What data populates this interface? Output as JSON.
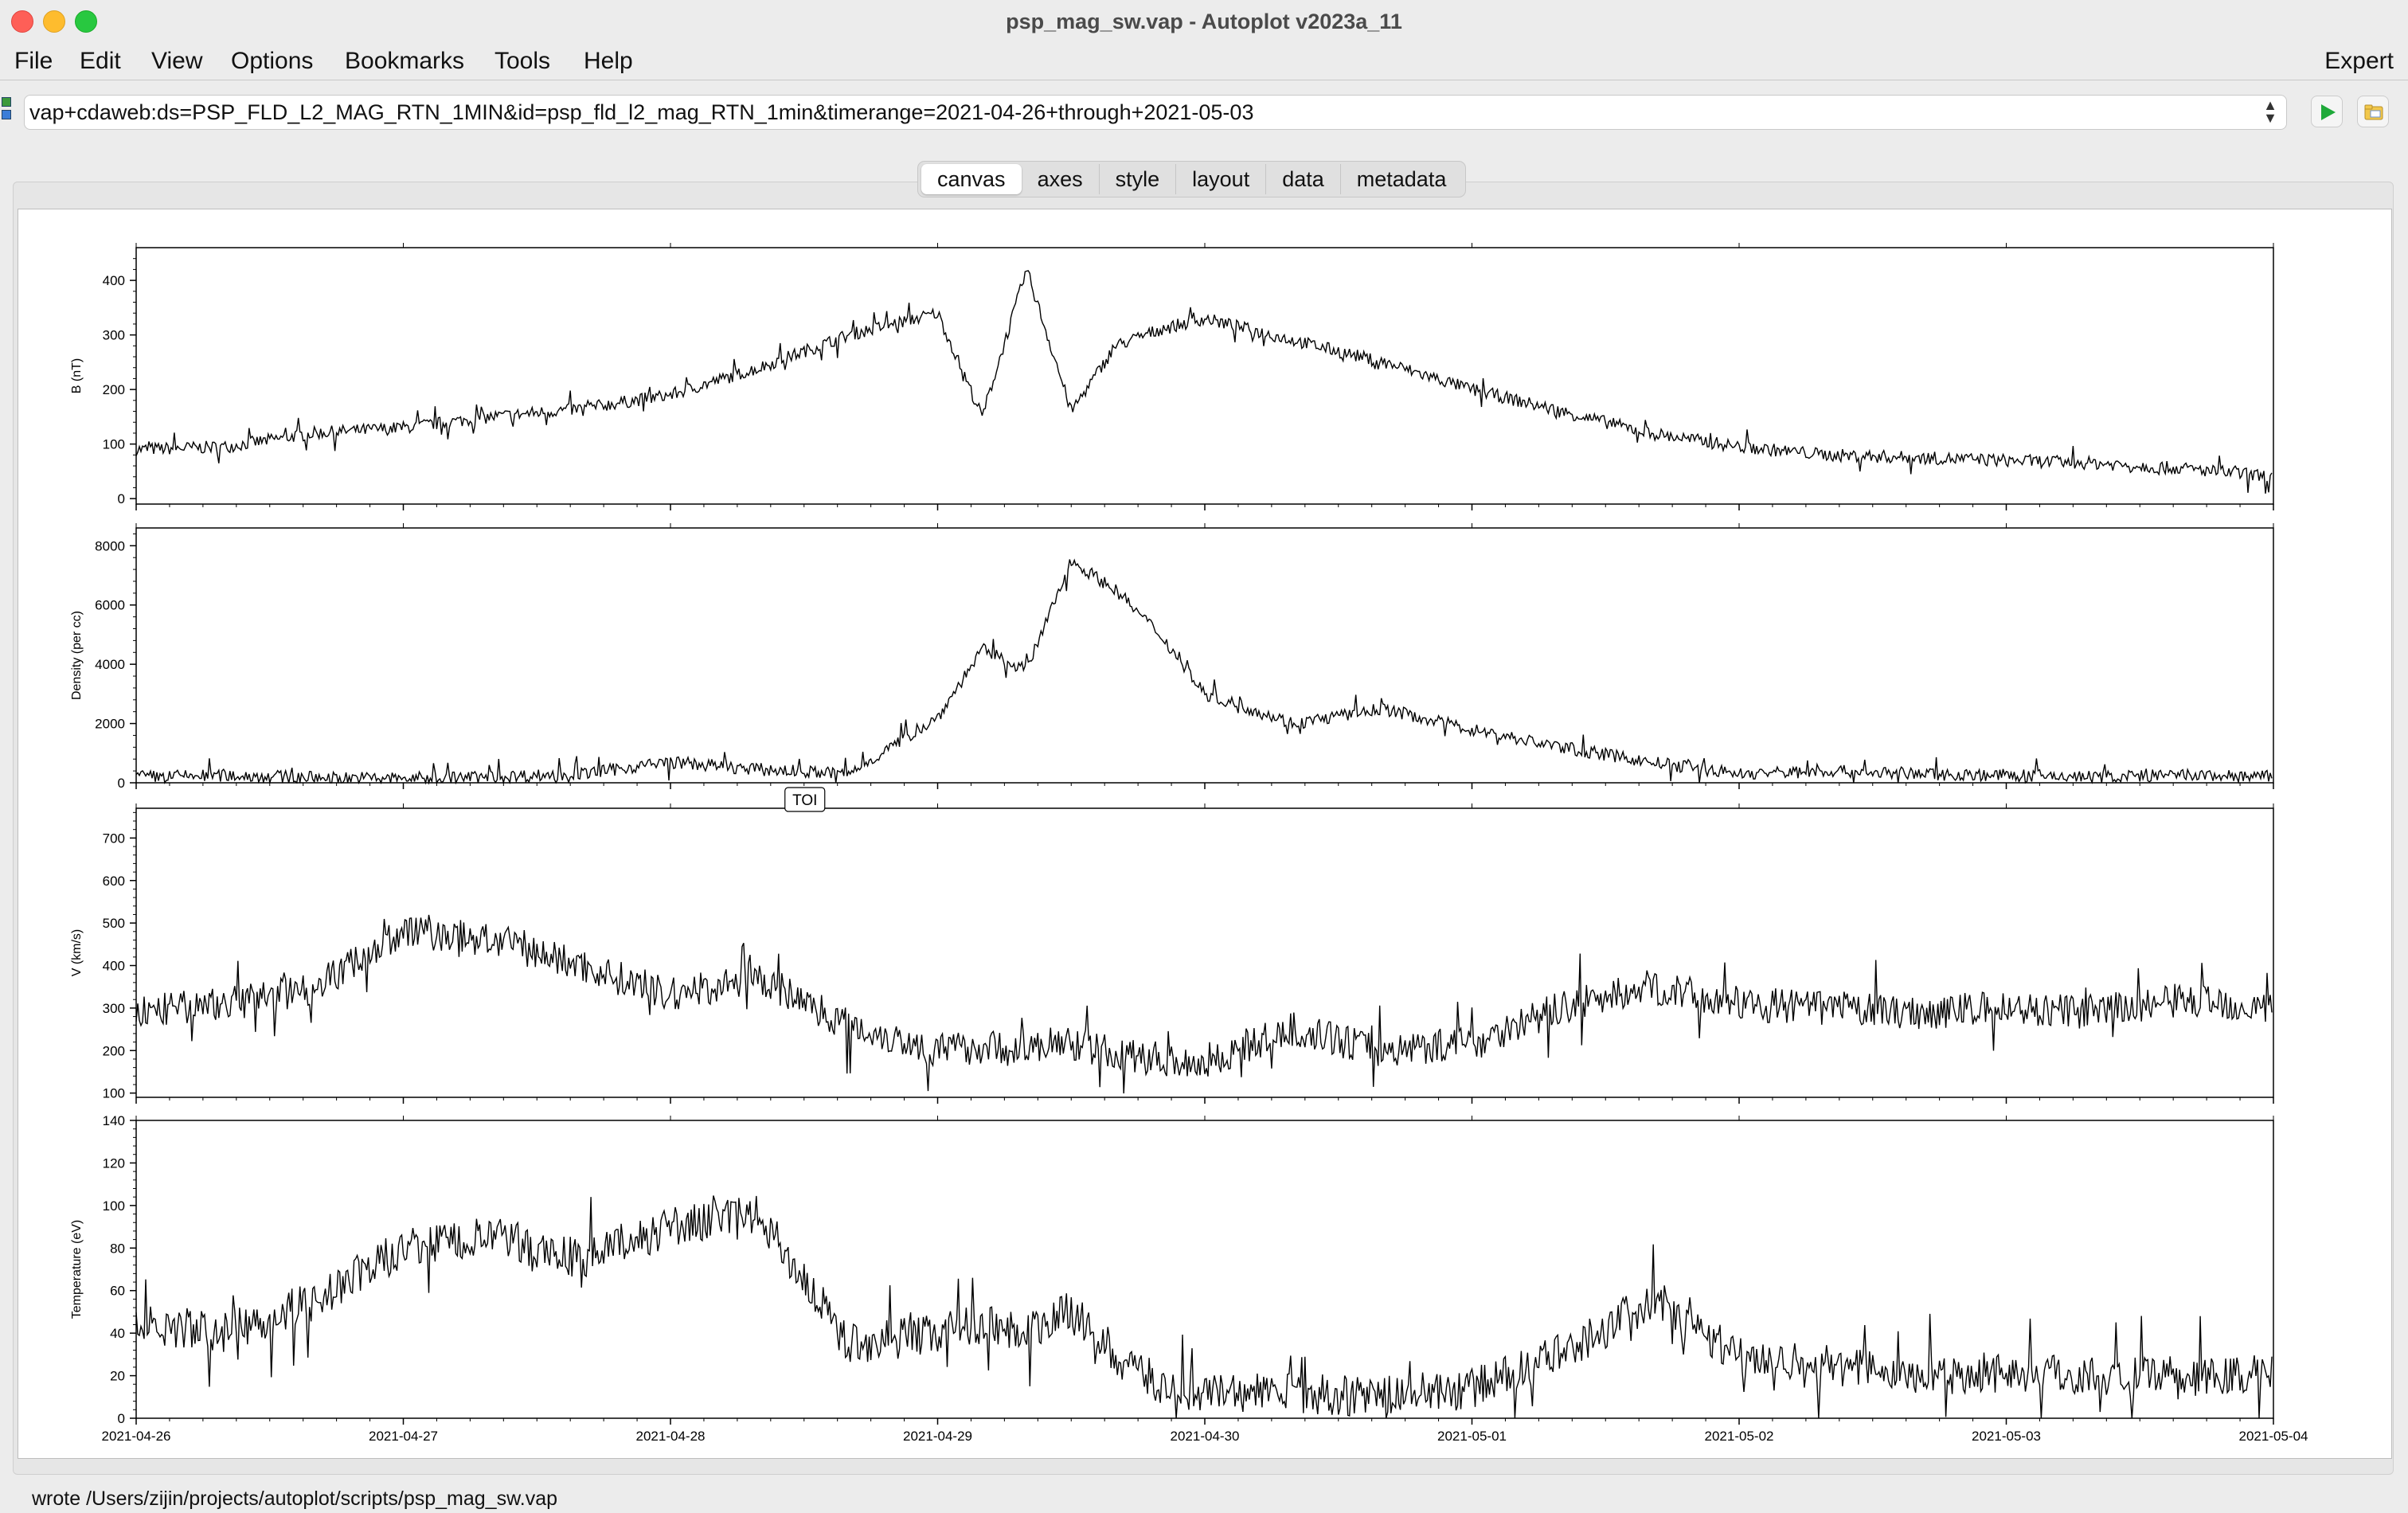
{
  "window": {
    "title": "psp_mag_sw.vap - Autoplot v2023a_11"
  },
  "menu": {
    "items": [
      "File",
      "Edit",
      "View",
      "Options",
      "Bookmarks",
      "Tools",
      "Help"
    ],
    "expert": "Expert"
  },
  "uri": {
    "value": "vap+cdaweb:ds=PSP_FLD_L2_MAG_RTN_1MIN&id=psp_fld_l2_mag_RTN_1min&timerange=2021-04-26+through+2021-05-03"
  },
  "tabs": [
    "canvas",
    "axes",
    "style",
    "layout",
    "data",
    "metadata"
  ],
  "status": "wrote /Users/zijin/projects/autoplot/scripts/psp_mag_sw.vap",
  "icons": {
    "go": "play-icon",
    "folder": "folder-icon",
    "uri-type": "data-source-icon",
    "spinner": "chevron-updown-icon"
  },
  "chart_data": [
    {
      "type": "line",
      "ylabel": "B (nT)",
      "ylim": [
        -10,
        460
      ],
      "yticks": [
        0,
        100,
        200,
        300,
        400
      ],
      "x": [
        "2021-04-26 00:00",
        "2021-04-26 08:00",
        "2021-04-26 16:00",
        "2021-04-27 00:00",
        "2021-04-27 08:00",
        "2021-04-27 16:00",
        "2021-04-28 00:00",
        "2021-04-28 08:00",
        "2021-04-28 16:00",
        "2021-04-29 00:00",
        "2021-04-29 04:00",
        "2021-04-29 08:00",
        "2021-04-29 12:00",
        "2021-04-29 16:00",
        "2021-04-29 20:00",
        "2021-04-30 00:00",
        "2021-04-30 08:00",
        "2021-04-30 16:00",
        "2021-05-01 00:00",
        "2021-05-01 08:00",
        "2021-05-01 16:00",
        "2021-05-02 00:00",
        "2021-05-02 08:00",
        "2021-05-02 16:00",
        "2021-05-03 00:00",
        "2021-05-03 08:00",
        "2021-05-03 16:00",
        "2021-05-04 00:00"
      ],
      "y": [
        90,
        95,
        120,
        130,
        150,
        165,
        190,
        240,
        300,
        340,
        150,
        420,
        160,
        280,
        310,
        330,
        290,
        250,
        200,
        160,
        120,
        95,
        80,
        75,
        70,
        65,
        55,
        40
      ]
    },
    {
      "type": "line",
      "ylabel": "Density (per cc)",
      "ylim": [
        0,
        8600
      ],
      "yticks": [
        0,
        2000,
        4000,
        6000,
        8000
      ],
      "x": [
        "2021-04-26 00:00",
        "2021-04-26 08:00",
        "2021-04-26 16:00",
        "2021-04-27 00:00",
        "2021-04-27 08:00",
        "2021-04-27 16:00",
        "2021-04-28 00:00",
        "2021-04-28 08:00",
        "2021-04-28 16:00",
        "2021-04-29 00:00",
        "2021-04-29 04:00",
        "2021-04-29 08:00",
        "2021-04-29 12:00",
        "2021-04-29 16:00",
        "2021-04-29 20:00",
        "2021-04-30 00:00",
        "2021-04-30 08:00",
        "2021-04-30 16:00",
        "2021-05-01 00:00",
        "2021-05-01 08:00",
        "2021-05-01 16:00",
        "2021-05-02 00:00",
        "2021-05-02 08:00",
        "2021-05-02 16:00",
        "2021-05-03 00:00",
        "2021-05-03 08:00",
        "2021-05-03 16:00",
        "2021-05-04 00:00"
      ],
      "y": [
        200,
        250,
        180,
        150,
        200,
        300,
        700,
        450,
        300,
        2200,
        4500,
        3800,
        7500,
        6500,
        5000,
        3000,
        2000,
        2500,
        1800,
        1200,
        700,
        300,
        400,
        300,
        250,
        200,
        250,
        200
      ]
    },
    {
      "type": "line",
      "ylabel": "V (km/s)",
      "ylim": [
        90,
        770
      ],
      "yticks": [
        100,
        200,
        300,
        400,
        500,
        600,
        700
      ],
      "annotation": "TOI",
      "x": [
        "2021-04-26 00:00",
        "2021-04-26 08:00",
        "2021-04-26 16:00",
        "2021-04-27 00:00",
        "2021-04-27 08:00",
        "2021-04-27 16:00",
        "2021-04-28 00:00",
        "2021-04-28 08:00",
        "2021-04-28 16:00",
        "2021-04-29 00:00",
        "2021-04-29 04:00",
        "2021-04-29 08:00",
        "2021-04-29 12:00",
        "2021-04-29 16:00",
        "2021-04-29 20:00",
        "2021-04-30 00:00",
        "2021-04-30 08:00",
        "2021-04-30 16:00",
        "2021-05-01 00:00",
        "2021-05-01 08:00",
        "2021-05-01 16:00",
        "2021-05-02 00:00",
        "2021-05-02 08:00",
        "2021-05-02 16:00",
        "2021-05-03 00:00",
        "2021-05-03 08:00",
        "2021-05-03 16:00",
        "2021-05-04 00:00"
      ],
      "y": [
        290,
        310,
        350,
        480,
        460,
        400,
        330,
        370,
        260,
        200,
        210,
        200,
        220,
        190,
        180,
        170,
        250,
        200,
        220,
        300,
        350,
        310,
        300,
        290,
        300,
        290,
        320,
        300
      ]
    },
    {
      "type": "line",
      "ylabel": "Temperature (eV)",
      "ylim": [
        0,
        140
      ],
      "yticks": [
        0,
        20,
        40,
        60,
        80,
        100,
        120,
        140
      ],
      "x": [
        "2021-04-26 00:00",
        "2021-04-26 08:00",
        "2021-04-26 16:00",
        "2021-04-27 00:00",
        "2021-04-27 08:00",
        "2021-04-27 16:00",
        "2021-04-28 00:00",
        "2021-04-28 08:00",
        "2021-04-28 16:00",
        "2021-04-29 00:00",
        "2021-04-29 04:00",
        "2021-04-29 08:00",
        "2021-04-29 12:00",
        "2021-04-29 16:00",
        "2021-04-29 20:00",
        "2021-04-30 00:00",
        "2021-04-30 08:00",
        "2021-04-30 16:00",
        "2021-05-01 00:00",
        "2021-05-01 08:00",
        "2021-05-01 16:00",
        "2021-05-02 00:00",
        "2021-05-02 08:00",
        "2021-05-02 16:00",
        "2021-05-03 00:00",
        "2021-05-03 08:00",
        "2021-05-03 16:00",
        "2021-05-04 00:00"
      ],
      "y": [
        45,
        40,
        55,
        80,
        85,
        75,
        90,
        95,
        35,
        40,
        45,
        40,
        50,
        30,
        15,
        12,
        12,
        10,
        14,
        30,
        55,
        30,
        25,
        20,
        22,
        20,
        18,
        22
      ]
    }
  ],
  "xaxis": {
    "range": [
      "2021-04-26",
      "2021-05-04"
    ],
    "tick_labels": [
      "2021-04-26",
      "2021-04-27",
      "2021-04-28",
      "2021-04-29",
      "2021-04-30",
      "2021-05-01",
      "2021-05-02",
      "2021-05-03",
      "2021-05-04"
    ]
  }
}
